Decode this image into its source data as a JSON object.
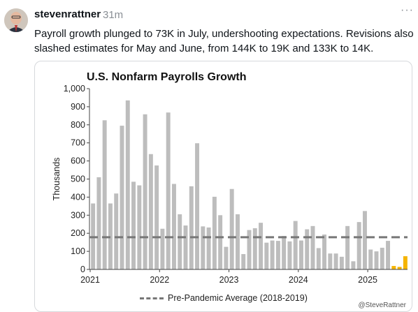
{
  "post": {
    "username": "stevenrattner",
    "time": "31m",
    "more_label": "···",
    "text": "Payroll growth plunged to 73K in July, undershooting expectations. Revisions also slashed estimates for May and June, from 144K to 19K and 133K to 14K."
  },
  "chart_data": {
    "type": "bar",
    "title": "U.S. Nonfarm Payrolls Growth",
    "ylabel": "Thousands",
    "ylim": [
      0,
      1000
    ],
    "yticks": [
      "0",
      "100",
      "200",
      "300",
      "400",
      "500",
      "600",
      "700",
      "800",
      "900",
      "1,000"
    ],
    "xticks": [
      "2021",
      "2022",
      "2023",
      "2024",
      "2025"
    ],
    "grid": false,
    "colors": {
      "bar": "#bdbdbd",
      "highlight": "#f5b400",
      "reference": "#777777"
    },
    "series": [
      {
        "values": [
          365,
          510,
          825,
          365,
          420,
          795,
          935,
          485,
          465,
          858,
          638,
          575,
          225,
          868,
          473,
          305,
          243,
          460,
          698,
          238,
          232,
          402,
          300,
          125,
          445,
          305,
          85,
          218,
          228,
          258,
          148,
          160,
          158,
          185,
          155,
          268,
          160,
          222,
          240,
          118,
          193,
          88,
          88,
          70,
          240,
          45,
          262,
          323,
          110,
          100,
          120,
          158,
          19,
          14,
          73
        ],
        "highlight_last": 3
      }
    ],
    "reference_line": {
      "name": "Pre-Pandemic Average (2018-2019)",
      "value": 178
    },
    "credit": "@SteveRattner"
  }
}
